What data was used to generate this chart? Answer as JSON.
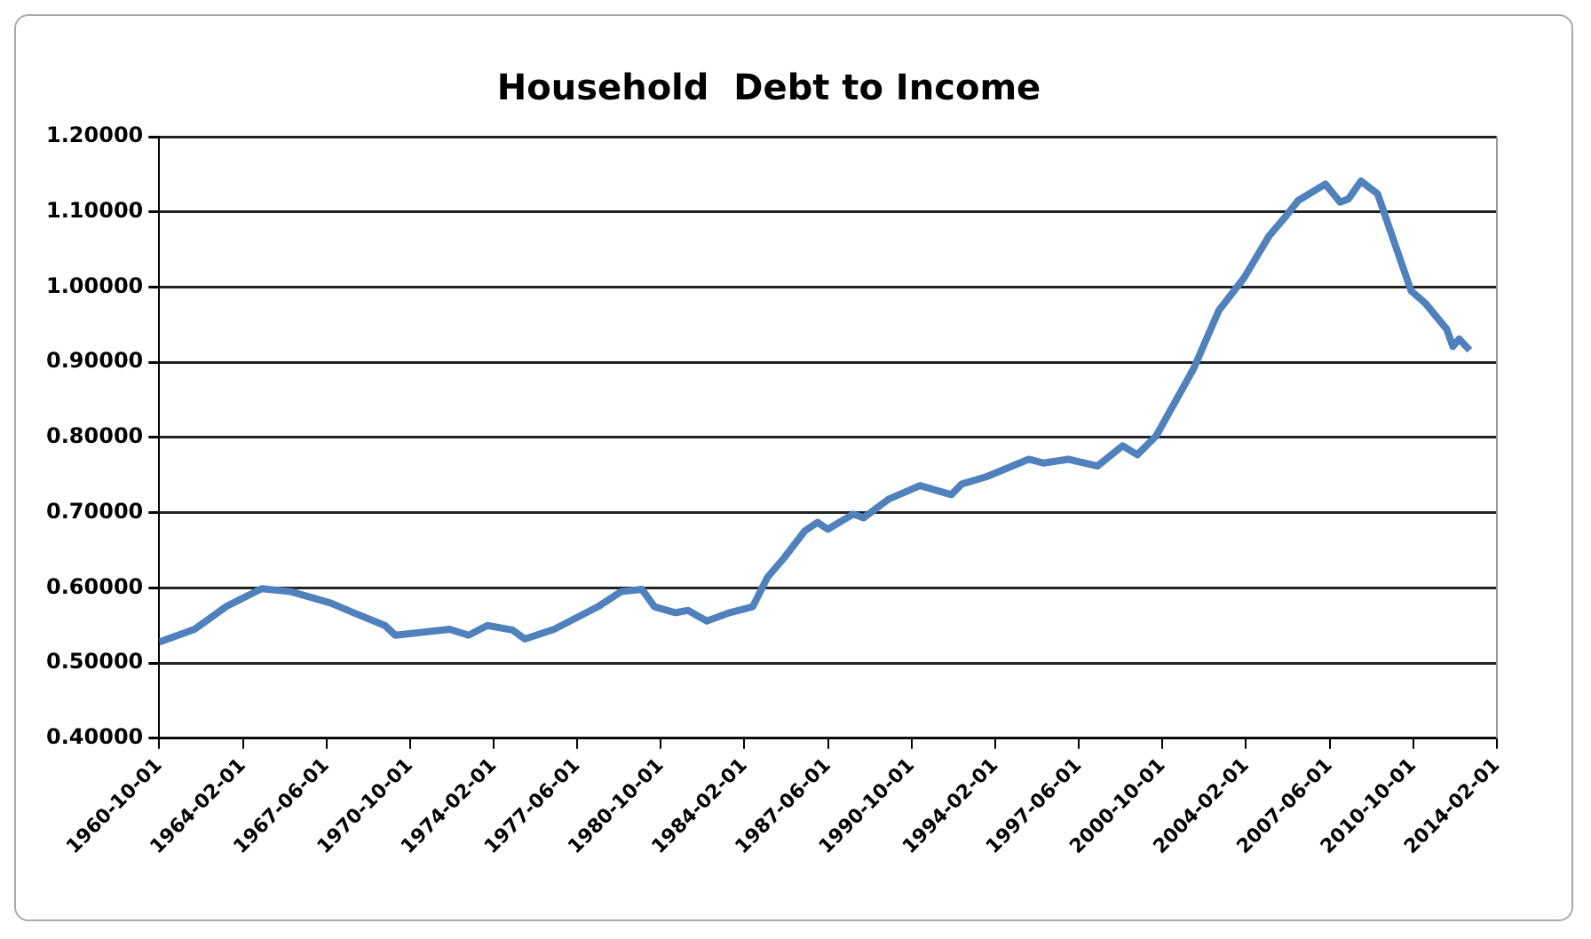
{
  "chart_data": {
    "type": "line",
    "title": "Household  Debt to Income",
    "x": [
      "1960-10",
      "1962-03",
      "1963-06",
      "1964-11",
      "1966-01",
      "1967-08",
      "1968-07",
      "1969-10",
      "1970-03",
      "1972-05",
      "1973-02",
      "1973-11",
      "1974-11",
      "1975-05",
      "1976-07",
      "1978-04",
      "1979-03",
      "1980-01",
      "1980-07",
      "1981-05",
      "1981-11",
      "1982-08",
      "1983-07",
      "1984-06",
      "1985-01",
      "1985-09",
      "1986-07",
      "1987-01",
      "1987-06",
      "1988-06",
      "1988-11",
      "1989-11",
      "1991-02",
      "1992-05",
      "1992-10",
      "1993-10",
      "1995-06",
      "1996-01",
      "1997-01",
      "1998-03",
      "1999-03",
      "1999-10",
      "2000-07",
      "2002-01",
      "2003-01",
      "2004-01",
      "2005-01",
      "2005-09",
      "2006-03",
      "2007-04",
      "2007-11",
      "2008-03",
      "2008-09",
      "2009-05",
      "2010-01",
      "2010-09",
      "2011-04",
      "2012-02",
      "2012-05",
      "2012-08",
      "2013-01"
    ],
    "series": [
      {
        "color": "#4f81bd",
        "values": [
          0.528,
          0.545,
          0.575,
          0.599,
          0.595,
          0.58,
          0.567,
          0.55,
          0.537,
          0.545,
          0.537,
          0.55,
          0.544,
          0.532,
          0.545,
          0.575,
          0.595,
          0.598,
          0.575,
          0.567,
          0.57,
          0.556,
          0.567,
          0.575,
          0.614,
          0.64,
          0.676,
          0.687,
          0.678,
          0.698,
          0.693,
          0.718,
          0.736,
          0.724,
          0.738,
          0.748,
          0.771,
          0.766,
          0.771,
          0.762,
          0.789,
          0.777,
          0.802,
          0.892,
          0.969,
          1.012,
          1.068,
          1.094,
          1.115,
          1.137,
          1.113,
          1.117,
          1.141,
          1.124,
          1.059,
          0.995,
          0.978,
          0.944,
          0.921,
          0.931,
          0.916
        ]
      }
    ],
    "xlim": [
      "1960-10-01",
      "2014-02-01"
    ],
    "xticks": [
      "1960-10-01",
      "1964-02-01",
      "1967-06-01",
      "1970-10-01",
      "1974-02-01",
      "1977-06-01",
      "1980-10-01",
      "1984-02-01",
      "1987-06-01",
      "1990-10-01",
      "1994-02-01",
      "1997-06-01",
      "2000-10-01",
      "2004-02-01",
      "2007-06-01",
      "2010-10-01",
      "2014-02-01"
    ],
    "ylim": [
      0.4,
      1.2
    ],
    "yticks": [
      {
        "value": 0.4,
        "label": "0.40000"
      },
      {
        "value": 0.5,
        "label": "0.50000"
      },
      {
        "value": 0.6,
        "label": "0.60000"
      },
      {
        "value": 0.7,
        "label": "0.70000"
      },
      {
        "value": 0.8,
        "label": "0.80000"
      },
      {
        "value": 0.9,
        "label": "0.90000"
      },
      {
        "value": 1.0,
        "label": "1.00000"
      },
      {
        "value": 1.1,
        "label": "1.10000"
      },
      {
        "value": 1.2,
        "label": "1.20000"
      }
    ],
    "grid": "y",
    "legend": false,
    "marker": "none",
    "line_style": "solid"
  }
}
